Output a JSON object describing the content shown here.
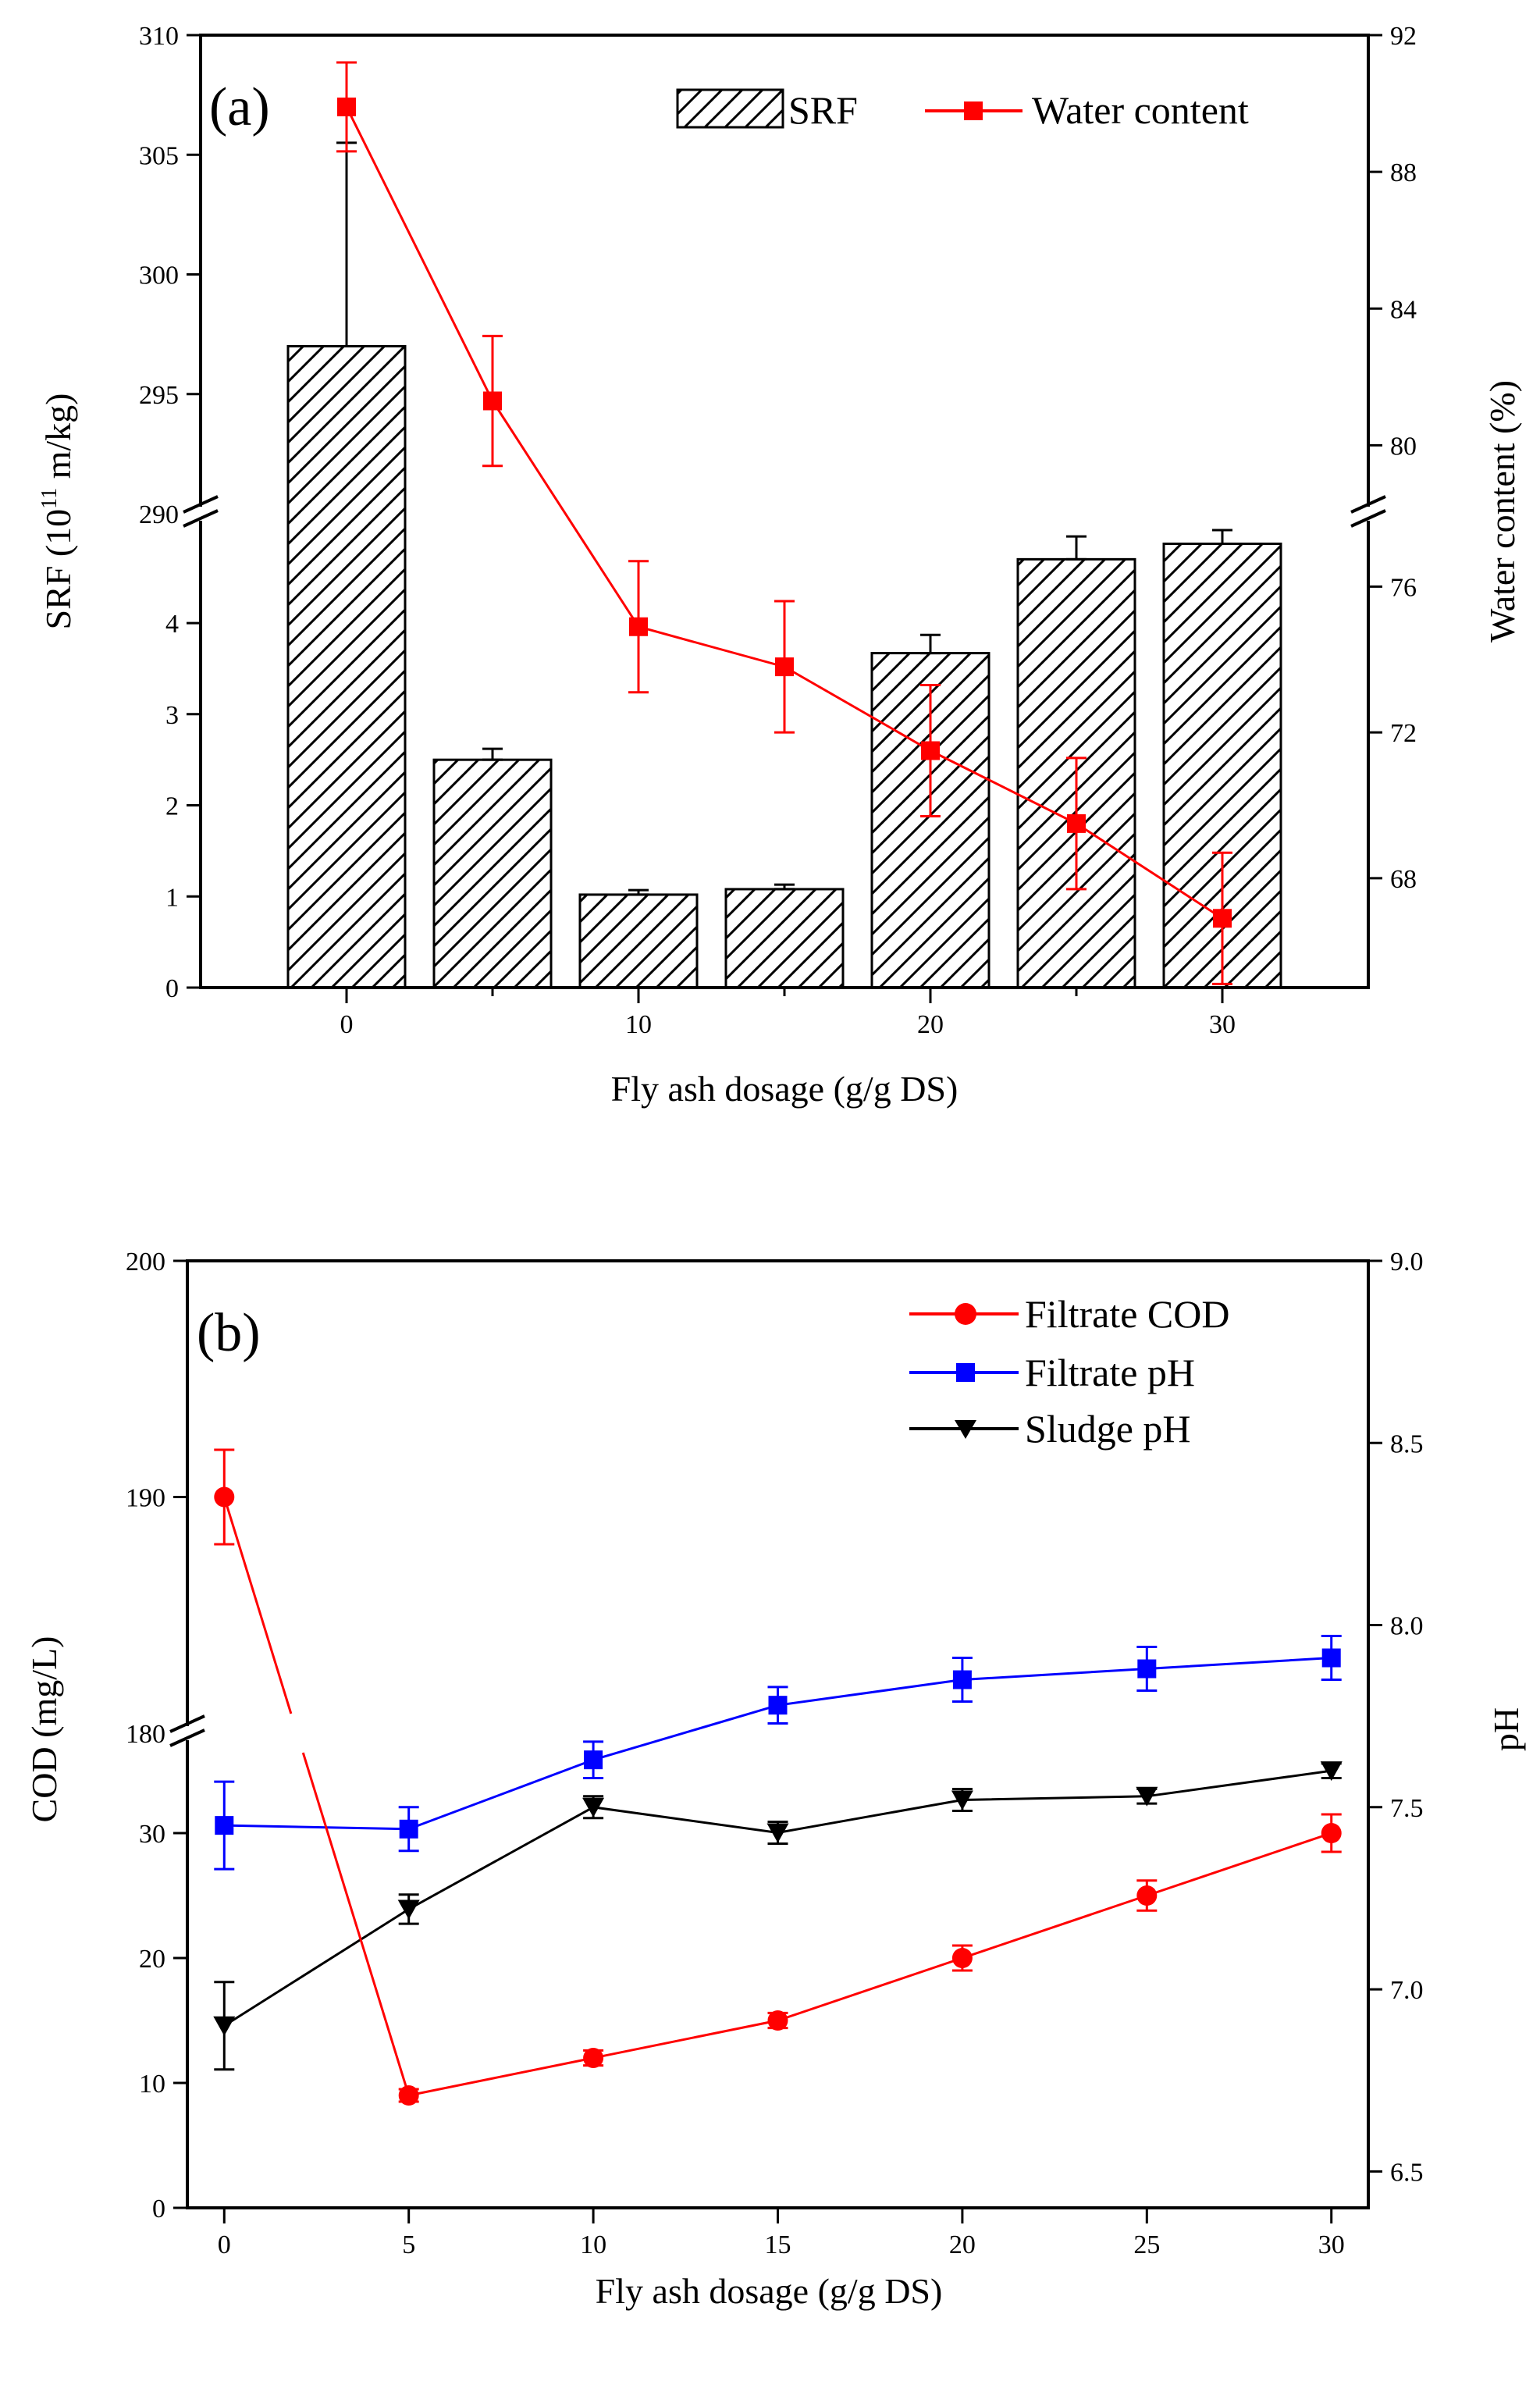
{
  "chart_data": [
    {
      "type": "bar+line",
      "panel_label": "(a)",
      "xlabel": "Fly ash dosage (g/g DS)",
      "ylabel_left": "SRF (10",
      "ylabel_left_sup": "11",
      "ylabel_left_unit": " m/kg)",
      "ylabel_right": "Water content (%)",
      "x": [
        0,
        5,
        10,
        15,
        20,
        25,
        30
      ],
      "x_tick_labels": [
        "0",
        "10",
        "20",
        "30"
      ],
      "x_tick_values": [
        0,
        10,
        20,
        30
      ],
      "xlim": [
        -5,
        35
      ],
      "y_left_lower": {
        "range": [
          0,
          5.2
        ],
        "ticks": [
          0,
          1,
          2,
          3,
          4
        ],
        "tick_labels": [
          "0",
          "1",
          "2",
          "3",
          "4"
        ]
      },
      "y_left_upper": {
        "range": [
          290,
          310
        ],
        "ticks": [
          290,
          295,
          300,
          305,
          310
        ],
        "tick_labels": [
          "290",
          "295",
          "300",
          "305",
          "310"
        ]
      },
      "y_right_lower": {
        "range": [
          65,
          78
        ],
        "ticks": [
          68,
          72,
          76
        ],
        "tick_labels": [
          "68",
          "72",
          "76"
        ]
      },
      "y_right_upper": {
        "range": [
          78,
          92
        ],
        "ticks": [
          80,
          84,
          88,
          92
        ],
        "tick_labels": [
          "80",
          "84",
          "88",
          "92"
        ]
      },
      "axis_break": {
        "left_lower_max": 5.2,
        "left_upper_min": 290,
        "right_break": 78
      },
      "series": [
        {
          "name": "SRF",
          "kind": "bar",
          "pattern": "hatch",
          "values": [
            297,
            2.5,
            1.02,
            1.08,
            3.67,
            4.7,
            4.87
          ],
          "errors": [
            8.5,
            0.12,
            0.05,
            0.05,
            0.2,
            0.25,
            0.15
          ]
        },
        {
          "name": "Water content",
          "kind": "line",
          "color": "#ff0000",
          "marker": "square",
          "values": [
            89.9,
            81.3,
            74.9,
            73.8,
            71.5,
            69.5,
            66.9
          ],
          "errors": [
            1.3,
            1.9,
            1.8,
            1.8,
            1.8,
            1.8,
            1.8
          ]
        }
      ],
      "legend": [
        "SRF",
        "Water content"
      ],
      "legend_position": "top-right"
    },
    {
      "type": "line",
      "panel_label": "(b)",
      "xlabel": "Fly ash dosage (g/g DS)",
      "ylabel_left": "COD (mg/L)",
      "ylabel_right": "pH",
      "x": [
        0,
        5,
        10,
        15,
        20,
        25,
        30
      ],
      "x_tick_labels": [
        "0",
        "5",
        "10",
        "15",
        "20",
        "25",
        "30"
      ],
      "x_tick_values": [
        0,
        5,
        10,
        15,
        20,
        25,
        30
      ],
      "xlim": [
        -1,
        31
      ],
      "y_left_lower": {
        "range": [
          0,
          38
        ],
        "ticks": [
          0,
          10,
          20,
          30
        ],
        "tick_labels": [
          "0",
          "10",
          "20",
          "30"
        ]
      },
      "y_left_upper": {
        "range": [
          180,
          200
        ],
        "ticks": [
          180,
          190,
          200
        ],
        "tick_labels": [
          "180",
          "190",
          "200"
        ]
      },
      "y_right": {
        "range": [
          6.4,
          9.0
        ],
        "ticks": [
          6.5,
          7.0,
          7.5,
          8.0,
          8.5,
          9.0
        ],
        "tick_labels": [
          "6.5",
          "7.0",
          "7.5",
          "8.0",
          "8.5",
          "9.0"
        ]
      },
      "axis_break": {
        "left_lower_max": 38,
        "left_upper_min": 180
      },
      "series": [
        {
          "name": "Filtrate COD",
          "axis": "left",
          "color": "#ff0000",
          "marker": "circle",
          "values": [
            190,
            9,
            12,
            15,
            20,
            25,
            30
          ],
          "errors": [
            2,
            0.5,
            0.6,
            0.6,
            1.0,
            1.2,
            1.5
          ]
        },
        {
          "name": "Filtrate pH",
          "axis": "right",
          "color": "#0000ff",
          "marker": "square",
          "values": [
            7.45,
            7.44,
            7.63,
            7.78,
            7.85,
            7.88,
            7.91
          ],
          "errors": [
            0.12,
            0.06,
            0.05,
            0.05,
            0.06,
            0.06,
            0.06
          ]
        },
        {
          "name": "Sludge pH",
          "axis": "right",
          "color": "#000000",
          "marker": "triangle-down",
          "values": [
            6.9,
            7.22,
            7.5,
            7.43,
            7.52,
            7.53,
            7.6
          ],
          "errors": [
            0.12,
            0.04,
            0.03,
            0.03,
            0.03,
            0.02,
            0.02
          ]
        }
      ],
      "legend": [
        "Filtrate COD",
        "Filtrate pH",
        "Sludge pH"
      ],
      "legend_position": "top-right"
    }
  ]
}
